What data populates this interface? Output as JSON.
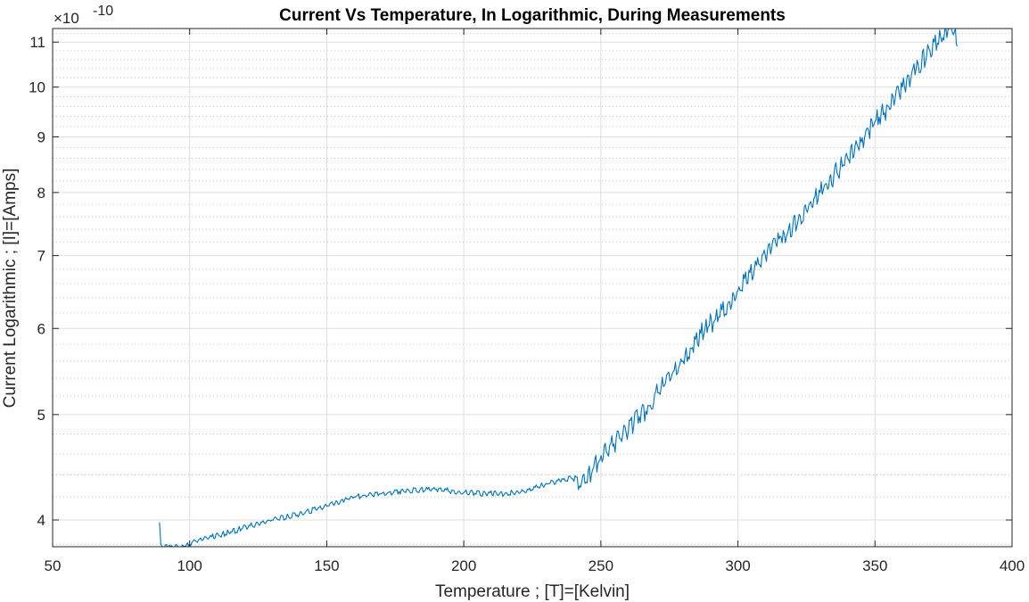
{
  "chart_data": {
    "type": "line",
    "title": "Current Vs Temperature, In Logarithmic, During Measurements",
    "xlabel": "Temperature ; [T]=[Kelvin]",
    "ylabel": "Current Logarithmic ; [I]=[Amps]",
    "y_exponent_prefix": "×10",
    "y_exponent_power": "-10",
    "xlim": [
      50,
      400
    ],
    "ylim": [
      3.78,
      11.32
    ],
    "yscale": "log",
    "y_multiplier": 1e-10,
    "grid": true,
    "minor_grid": true,
    "x_ticks": [
      50,
      100,
      150,
      200,
      250,
      300,
      350,
      400
    ],
    "x_tick_labels": [
      "50",
      "100",
      "150",
      "200",
      "250",
      "300",
      "350",
      "400"
    ],
    "y_ticks": [
      4,
      5,
      6,
      7,
      8,
      9,
      10,
      11
    ],
    "y_tick_labels": [
      "4",
      "5",
      "6",
      "7",
      "8",
      "9",
      "10",
      "11"
    ],
    "series": [
      {
        "color": "#0072BD",
        "x": [
          89,
          89.5,
          90,
          93,
          97,
          100,
          102,
          108,
          115,
          122,
          130,
          140,
          150,
          155,
          160,
          170,
          180,
          190,
          200,
          208,
          215,
          222,
          228,
          235,
          241,
          243,
          247,
          252,
          258,
          264,
          268,
          272,
          276,
          280,
          283,
          288,
          293,
          297,
          300,
          306,
          310,
          315,
          320,
          325,
          330,
          335,
          340,
          345,
          350,
          355,
          360,
          365,
          370,
          374,
          377,
          379,
          380
        ],
        "y": [
          3.98,
          3.8,
          3.78,
          3.78,
          3.78,
          3.8,
          3.83,
          3.86,
          3.9,
          3.95,
          4.0,
          4.05,
          4.12,
          4.16,
          4.2,
          4.23,
          4.26,
          4.27,
          4.24,
          4.23,
          4.23,
          4.25,
          4.3,
          4.35,
          4.38,
          4.33,
          4.45,
          4.62,
          4.8,
          4.98,
          5.1,
          5.3,
          5.45,
          5.6,
          5.75,
          6.0,
          6.15,
          6.35,
          6.5,
          6.8,
          7.0,
          7.25,
          7.45,
          7.7,
          8.0,
          8.3,
          8.6,
          8.9,
          9.3,
          9.6,
          10.0,
          10.4,
          10.8,
          11.1,
          11.32,
          11.25,
          10.9
        ]
      }
    ]
  }
}
